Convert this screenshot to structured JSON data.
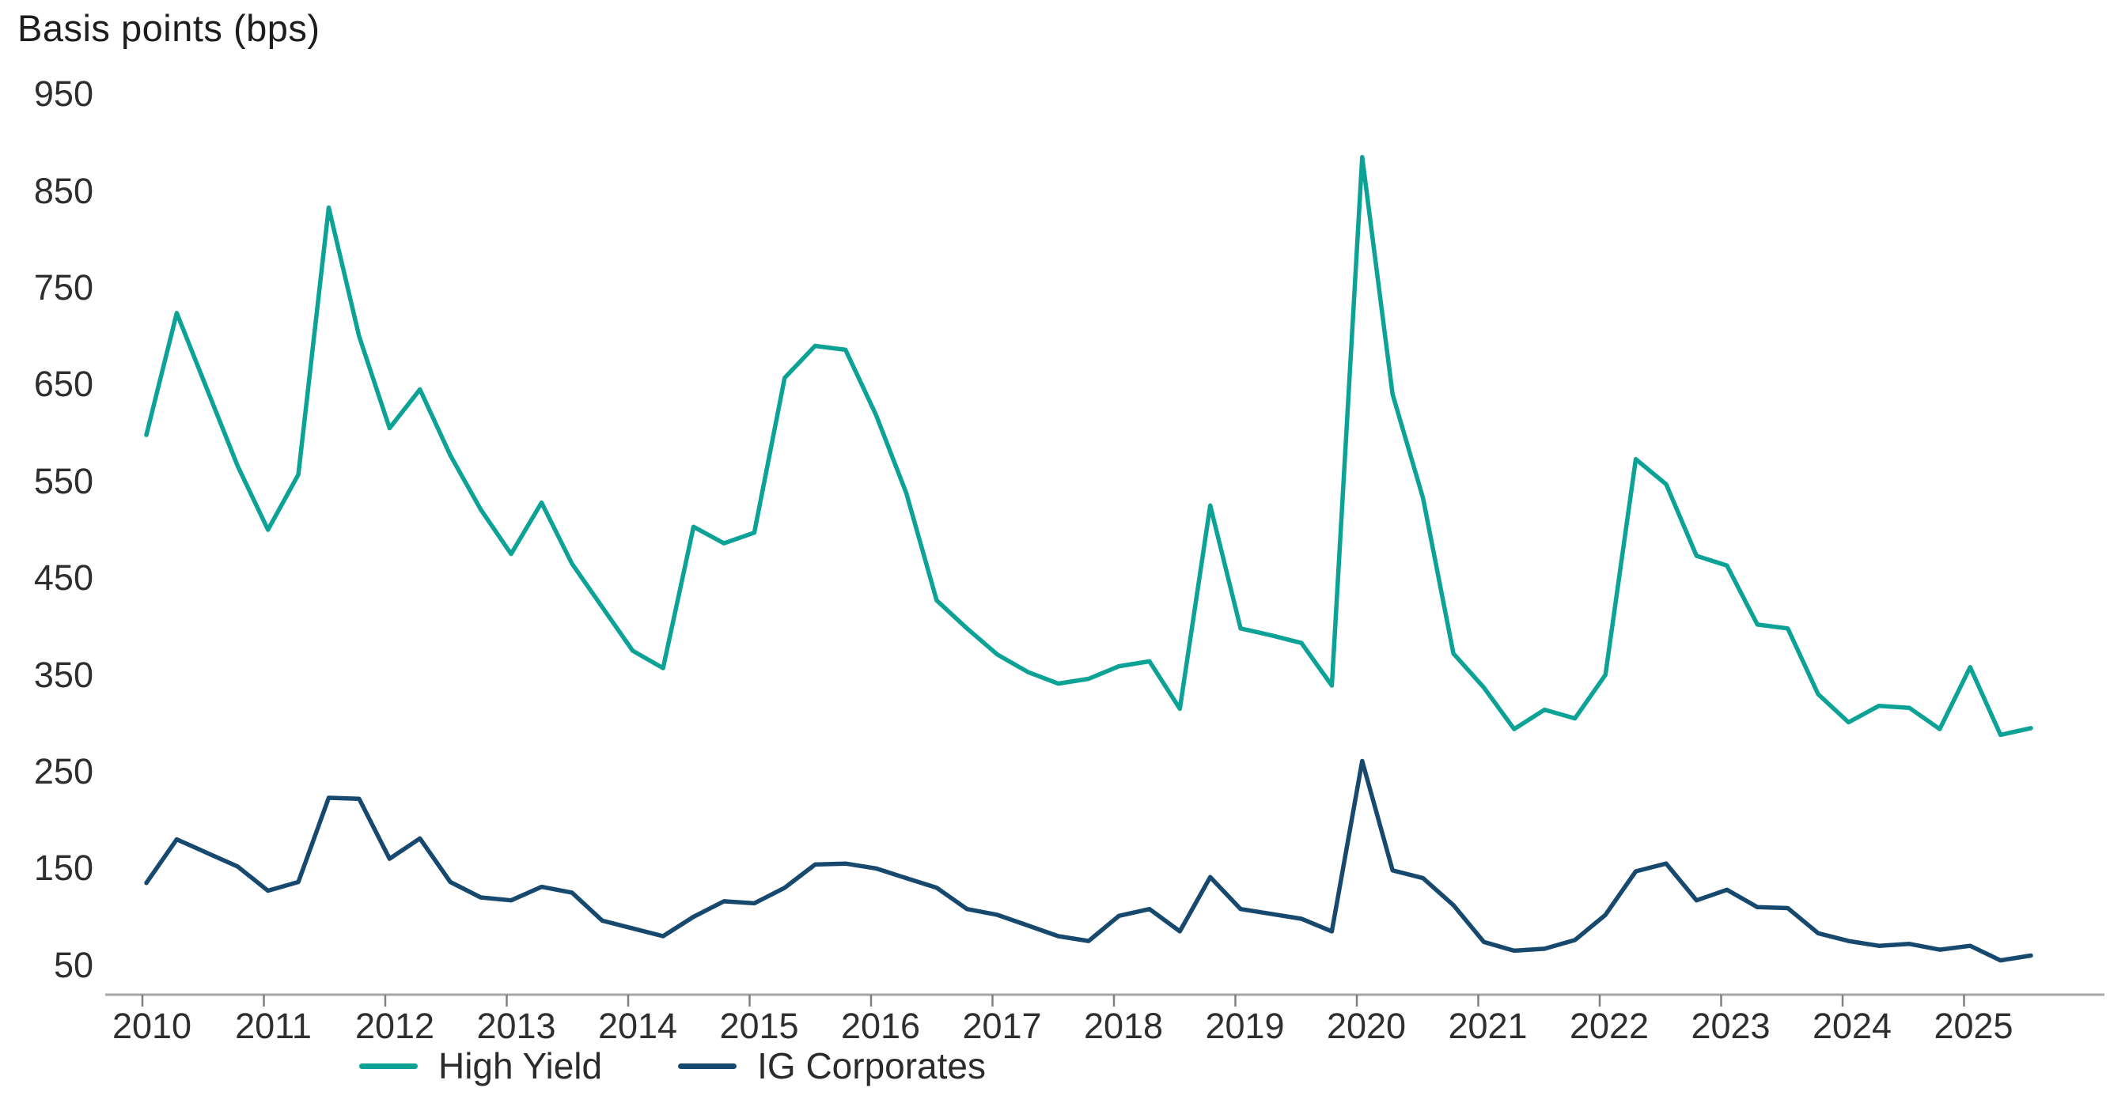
{
  "title": "Basis points (bps)",
  "legend": {
    "items": [
      {
        "label": "High Yield",
        "color": "#0CA296"
      },
      {
        "label": "IG Corporates",
        "color": "#17496F"
      }
    ]
  },
  "axis_colors": {
    "axis_line": "#a6a6a6",
    "tick_mark": "#7f7f7f",
    "label_text": "#2e2e2e"
  },
  "chart_data": {
    "type": "line",
    "title": "Basis points (bps)",
    "ylabel": "Basis points (bps)",
    "xlabel": "",
    "grid": false,
    "legend_position": "bottom-center",
    "ylim": [
      50,
      950
    ],
    "y_ticks": [
      950,
      850,
      750,
      650,
      550,
      450,
      350,
      250,
      150,
      50
    ],
    "x_tick_years": [
      "2010",
      "2011",
      "2012",
      "2013",
      "2014",
      "2015",
      "2016",
      "2017",
      "2018",
      "2019",
      "2020",
      "2021",
      "2022",
      "2023",
      "2024",
      "2025"
    ],
    "x_start_year": 2010,
    "points_per_year": 4,
    "x_end": 2025.5,
    "series": [
      {
        "name": "High Yield",
        "color": "#0CA296",
        "values": [
          598,
          724,
          645,
          566,
          500,
          557,
          833,
          700,
          605,
          645,
          577,
          521,
          475,
          528,
          465,
          420,
          375,
          357,
          503,
          486,
          497,
          657,
          690,
          686,
          619,
          538,
          427,
          398,
          371,
          353,
          341,
          346,
          359,
          364,
          315,
          525,
          398,
          391,
          383,
          339,
          885,
          640,
          533,
          372,
          337,
          294,
          314,
          305,
          350,
          573,
          547,
          473,
          463,
          402,
          398,
          330,
          301,
          318,
          316,
          294,
          358,
          288,
          295
        ]
      },
      {
        "name": "IG Corporates",
        "color": "#17496F",
        "values": [
          135,
          180,
          166,
          152,
          127,
          136,
          223,
          222,
          160,
          181,
          136,
          120,
          117,
          131,
          125,
          96,
          88,
          80,
          100,
          116,
          114,
          130,
          154,
          155,
          150,
          140,
          130,
          108,
          102,
          91,
          80,
          75,
          101,
          108,
          85,
          141,
          108,
          103,
          98,
          85,
          261,
          148,
          140,
          112,
          74,
          65,
          67,
          76,
          102,
          147,
          155,
          117,
          128,
          110,
          109,
          83,
          75,
          70,
          72,
          66,
          70,
          55,
          60
        ]
      }
    ]
  }
}
